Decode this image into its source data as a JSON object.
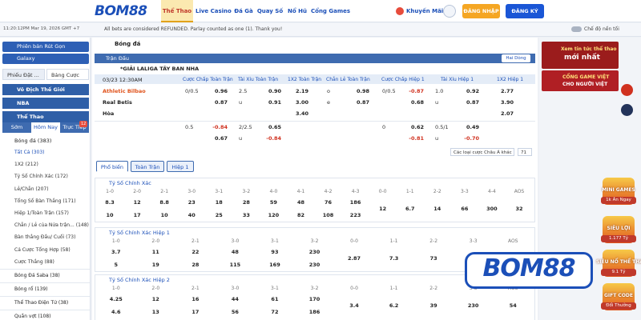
{
  "header": {
    "logo": "BOM88",
    "nav": [
      "Thể Thao",
      "Live Casino",
      "Đá Gà",
      "Quay Số",
      "Nổ Hũ",
      "Cổng Games"
    ],
    "promo": "Khuyến Mãi",
    "login": "ĐĂNG NHẬP",
    "register": "ĐĂNG KÝ"
  },
  "status_bar": {
    "time": "11:20:12PM Mar 19, 2026 GMT +7",
    "notice": "All bets are considered REFUNDED. Parlay counted as one (1). Thank you!",
    "dark_mode": "Chế độ nền tối"
  },
  "sidebar": {
    "quick_links": [
      "Phiên bản Rút Gọn",
      "Galaxy"
    ],
    "tabs": [
      "Phiếu Đặt ...",
      "Bảng Cược"
    ],
    "sections": [
      "Vô Địch Thế Giới",
      "NBA",
      "Thể Thao"
    ],
    "time_tabs": [
      "Sớm",
      "Hôm Nay",
      "Trực Tiếp"
    ],
    "live_count": "12",
    "current_sport": "Bóng đá (383)",
    "bet_types": [
      "Tất Cả (303)",
      "1X2 (212)",
      "Tỷ Số Chính Xác (172)",
      "Lẻ/Chẵn (207)",
      "Tổng Số Bàn Thắng (171)",
      "Hiệp 1/Toàn Trận (157)",
      "Chẵn / Lẻ của Nửa trận... (148)",
      "Bàn thắng Đầu/ Cuối (73)",
      "Cả Cược Tổng Hợp (58)",
      "Cược Thắng (88)"
    ],
    "sports": [
      "Bóng Đá Saba (38)",
      "Bóng rổ (139)",
      "Thể Thao Điện Tử (38)",
      "Quần vợt (108)"
    ]
  },
  "main": {
    "sport": "Bóng đá",
    "panel": "Trận Đấu",
    "view": "Hai Dòng",
    "league": "*GIẢI LALIGA TÂY BAN NHA",
    "match_time": "03/23 12:30AM",
    "columns": [
      "Cược Chấp Toàn Trận",
      "Tài Xỉu Toàn Trận",
      "1X2 Toàn Trận",
      "Chẵn Lẻ Toàn Trận",
      "Cược Chấp Hiệp 1",
      "Tài Xỉu Hiệp 1",
      "1X2 Hiệp 1"
    ],
    "rows": [
      {
        "team": "Athletic Bilbao",
        "cells": [
          {
            "line": "0/0.5",
            "odds": "0.96"
          },
          {
            "line": "2.5",
            "odds": "0.90"
          },
          {
            "odds": "2.19"
          },
          {
            "line": "o",
            "odds": "0.98"
          },
          {
            "line": "0/0.5",
            "odds": "-0.87"
          },
          {
            "line": "1.0",
            "odds": "0.92"
          },
          {
            "odds": "2.77"
          }
        ]
      },
      {
        "team": "Real Betis",
        "cells": [
          {
            "odds": "0.87"
          },
          {
            "line": "u",
            "odds": "0.91"
          },
          {
            "odds": "3.00"
          },
          {
            "line": "e",
            "odds": "0.87"
          },
          {
            "odds": "0.68"
          },
          {
            "line": "u",
            "odds": "0.87"
          },
          {
            "odds": "3.90"
          }
        ]
      },
      {
        "team": "Hòa",
        "cells": [
          null,
          null,
          {
            "odds": "3.40"
          },
          null,
          null,
          null,
          {
            "odds": "2.07"
          }
        ]
      },
      {
        "cells": [
          {
            "line": "0.5",
            "odds": "-0.84"
          },
          {
            "line": "2/2.5",
            "odds": "0.65"
          },
          null,
          null,
          {
            "line": "0",
            "odds": "0.62"
          },
          {
            "line": "0.5/1",
            "odds": "0.49"
          },
          null
        ]
      },
      {
        "cells": [
          {
            "odds": "0.67"
          },
          {
            "line": "u",
            "odds": "-0.84"
          },
          null,
          null,
          {
            "odds": "-0.81"
          },
          {
            "line": "u",
            "odds": "-0.70"
          },
          null
        ]
      }
    ],
    "more_markets": "Các loại cược Châu Á khác",
    "market_count": "71",
    "tabs": [
      "Phổ biến",
      "Toàn Trận",
      "Hiệp 1"
    ],
    "score_sections": [
      {
        "title": "Tỷ Số Chính Xác",
        "scores": [
          "1-0",
          "2-0",
          "2-1",
          "3-0",
          "3-1",
          "3-2",
          "4-0",
          "4-1",
          "4-2",
          "4-3",
          "0-0",
          "1-1",
          "2-2",
          "3-3",
          "4-4",
          "AOS"
        ],
        "top": [
          "8.3",
          "12",
          "8.8",
          "23",
          "18",
          "28",
          "59",
          "48",
          "76",
          "186"
        ],
        "bottom": [
          "10",
          "17",
          "10",
          "40",
          "25",
          "33",
          "120",
          "82",
          "108",
          "223"
        ],
        "middle": [
          "12",
          "6.7",
          "14",
          "66",
          "300",
          "32"
        ]
      },
      {
        "title": "Tỷ Số Chính Xác Hiệp 1",
        "scores": [
          "1-0",
          "2-0",
          "2-1",
          "3-0",
          "3-1",
          "3-2",
          "0-0",
          "1-1",
          "2-2",
          "3-3",
          "AOS"
        ],
        "top": [
          "3.7",
          "11",
          "22",
          "48",
          "93",
          "230"
        ],
        "bottom": [
          "5",
          "19",
          "28",
          "115",
          "169",
          "230"
        ],
        "middle": [
          "2.87",
          "7.3",
          "73"
        ]
      },
      {
        "title": "Tỷ Số Chính Xác Hiệp 2",
        "scores": [
          "1-0",
          "2-0",
          "2-1",
          "3-0",
          "3-1",
          "3-2",
          "0-0",
          "1-1",
          "2-2",
          "3-3",
          "AOS"
        ],
        "top": [
          "4.25",
          "12",
          "16",
          "44",
          "61",
          "170"
        ],
        "bottom": [
          "4.6",
          "13",
          "17",
          "56",
          "72",
          "186"
        ],
        "middle": [
          "3.4",
          "6.2",
          "39",
          "230",
          "54"
        ]
      }
    ]
  },
  "promos": {
    "banners": [
      {
        "title": "Xem tin tức thể thao",
        "subtitle": "mới nhất"
      },
      {
        "title": "CỔNG GAME VIỆT",
        "subtitle": "CHO NGƯỜI VIỆT"
      }
    ],
    "games": [
      {
        "title": "MINI GAMES",
        "subtitle": "1k Ăn Ngay"
      },
      {
        "title": "SIÊU LỢI",
        "subtitle": "1.177 Tỷ"
      },
      {
        "title": "SIÊU NỔ THỂ THAO",
        "subtitle": "9.1 Tỷ"
      },
      {
        "title": "GIFT CODE",
        "subtitle": "Đổi Thưởng"
      }
    ],
    "overlay_logo": "BOM88"
  }
}
